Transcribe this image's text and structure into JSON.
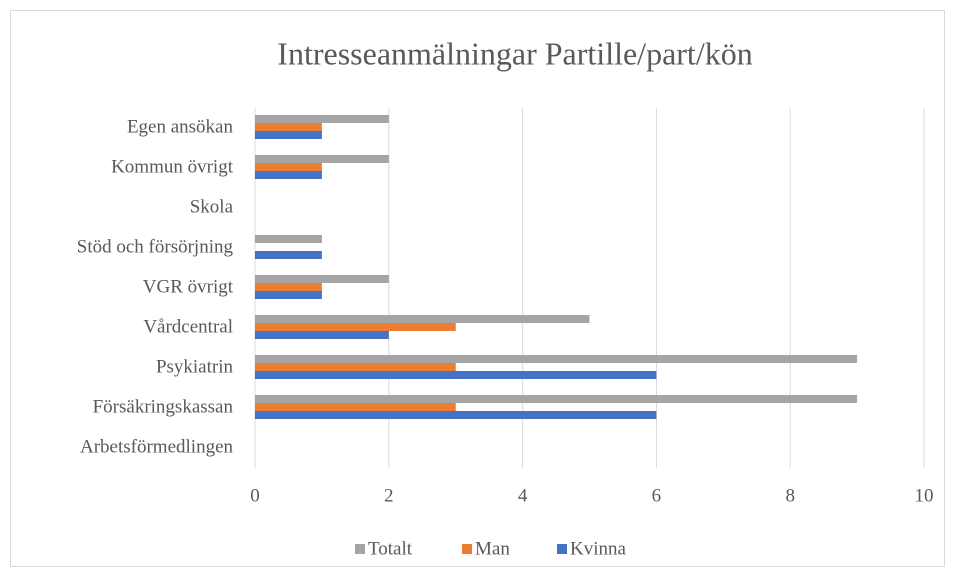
{
  "chart_data": {
    "type": "bar",
    "orientation": "horizontal",
    "title": "Intresseanmälningar Partille/part/kön",
    "categories": [
      "Arbetsförmedlingen",
      "Försäkringskassan",
      "Psykiatrin",
      "Vårdcentral",
      "VGR övrigt",
      "Stöd och försörjning",
      "Skola",
      "Kommun övrigt",
      "Egen ansökan"
    ],
    "series": [
      {
        "name": "Kvinna",
        "color": "#4472c4",
        "values": [
          0,
          6,
          6,
          2,
          1,
          1,
          0,
          1,
          1
        ]
      },
      {
        "name": "Man",
        "color": "#ed7d31",
        "values": [
          0,
          3,
          3,
          3,
          1,
          0,
          0,
          1,
          1
        ]
      },
      {
        "name": "Totalt",
        "color": "#a5a5a5",
        "values": [
          0,
          9,
          9,
          5,
          2,
          1,
          0,
          2,
          2
        ]
      }
    ],
    "xlim": [
      0,
      10
    ],
    "xticks": [
      0,
      2,
      4,
      6,
      8,
      10
    ],
    "grid": true,
    "legend": "bottom"
  }
}
